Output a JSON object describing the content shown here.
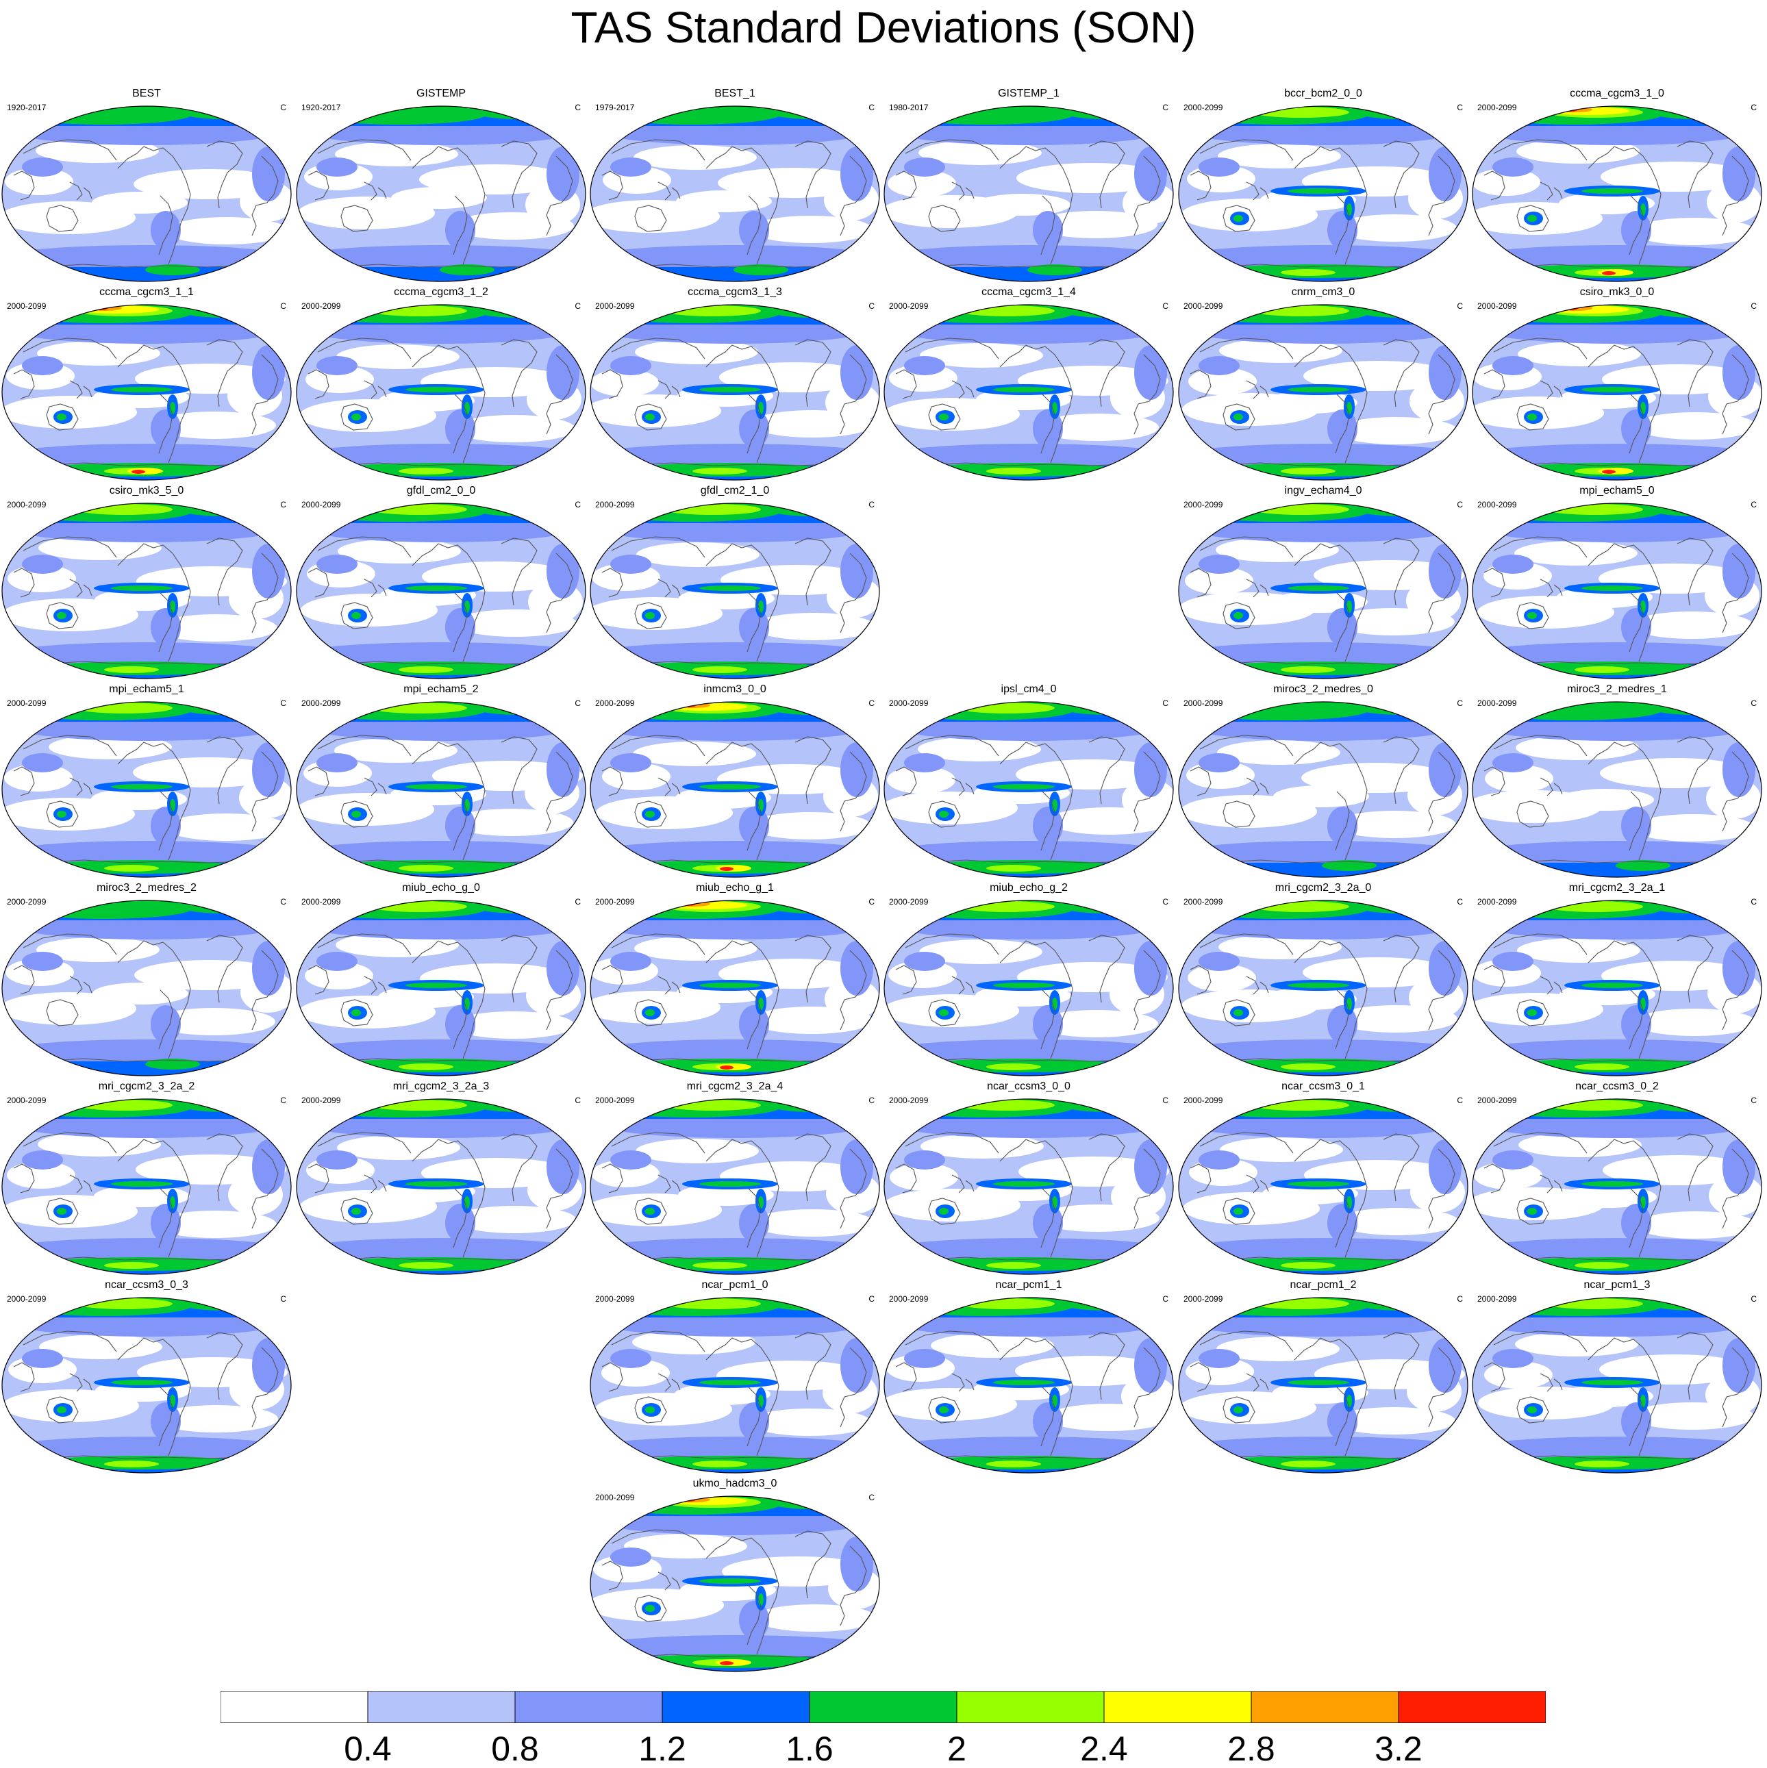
{
  "title": "TAS Standard Deviations (SON)",
  "units": "C",
  "panels": [
    {
      "name": "BEST",
      "period": "1920-2017",
      "row": 0,
      "col": 0,
      "style": "obs"
    },
    {
      "name": "GISTEMP",
      "period": "1920-2017",
      "row": 0,
      "col": 1,
      "style": "obs"
    },
    {
      "name": "BEST_1",
      "period": "1979-2017",
      "row": 0,
      "col": 2,
      "style": "obs"
    },
    {
      "name": "GISTEMP_1",
      "period": "1980-2017",
      "row": 0,
      "col": 3,
      "style": "obs"
    },
    {
      "name": "bccr_bcm2_0_0",
      "period": "2000-2099",
      "row": 0,
      "col": 4,
      "style": "model"
    },
    {
      "name": "cccma_cgcm3_1_0",
      "period": "2000-2099",
      "row": 0,
      "col": 5,
      "style": "hot"
    },
    {
      "name": "cccma_cgcm3_1_1",
      "period": "2000-2099",
      "row": 1,
      "col": 0,
      "style": "hot"
    },
    {
      "name": "cccma_cgcm3_1_2",
      "period": "2000-2099",
      "row": 1,
      "col": 1,
      "style": "model"
    },
    {
      "name": "cccma_cgcm3_1_3",
      "period": "2000-2099",
      "row": 1,
      "col": 2,
      "style": "model"
    },
    {
      "name": "cccma_cgcm3_1_4",
      "period": "2000-2099",
      "row": 1,
      "col": 3,
      "style": "model"
    },
    {
      "name": "cnrm_cm3_0",
      "period": "2000-2099",
      "row": 1,
      "col": 4,
      "style": "model"
    },
    {
      "name": "csiro_mk3_0_0",
      "period": "2000-2099",
      "row": 1,
      "col": 5,
      "style": "hot"
    },
    {
      "name": "csiro_mk3_5_0",
      "period": "2000-2099",
      "row": 2,
      "col": 0,
      "style": "model"
    },
    {
      "name": "gfdl_cm2_0_0",
      "period": "2000-2099",
      "row": 2,
      "col": 1,
      "style": "model"
    },
    {
      "name": "gfdl_cm2_1_0",
      "period": "2000-2099",
      "row": 2,
      "col": 2,
      "style": "model"
    },
    {
      "name": "ingv_echam4_0",
      "period": "2000-2099",
      "row": 2,
      "col": 4,
      "style": "model"
    },
    {
      "name": "mpi_echam5_0",
      "period": "2000-2099",
      "row": 2,
      "col": 5,
      "style": "model"
    },
    {
      "name": "mpi_echam5_1",
      "period": "2000-2099",
      "row": 3,
      "col": 0,
      "style": "model"
    },
    {
      "name": "mpi_echam5_2",
      "period": "2000-2099",
      "row": 3,
      "col": 1,
      "style": "model"
    },
    {
      "name": "inmcm3_0_0",
      "period": "2000-2099",
      "row": 3,
      "col": 2,
      "style": "hot"
    },
    {
      "name": "ipsl_cm4_0",
      "period": "2000-2099",
      "row": 3,
      "col": 3,
      "style": "model"
    },
    {
      "name": "miroc3_2_medres_0",
      "period": "2000-2099",
      "row": 3,
      "col": 4,
      "style": "obs"
    },
    {
      "name": "miroc3_2_medres_1",
      "period": "2000-2099",
      "row": 3,
      "col": 5,
      "style": "obs"
    },
    {
      "name": "miroc3_2_medres_2",
      "period": "2000-2099",
      "row": 4,
      "col": 0,
      "style": "obs"
    },
    {
      "name": "miub_echo_g_0",
      "period": "2000-2099",
      "row": 4,
      "col": 1,
      "style": "model"
    },
    {
      "name": "miub_echo_g_1",
      "period": "2000-2099",
      "row": 4,
      "col": 2,
      "style": "hot"
    },
    {
      "name": "miub_echo_g_2",
      "period": "2000-2099",
      "row": 4,
      "col": 3,
      "style": "model"
    },
    {
      "name": "mri_cgcm2_3_2a_0",
      "period": "2000-2099",
      "row": 4,
      "col": 4,
      "style": "model"
    },
    {
      "name": "mri_cgcm2_3_2a_1",
      "period": "2000-2099",
      "row": 4,
      "col": 5,
      "style": "model"
    },
    {
      "name": "mri_cgcm2_3_2a_2",
      "period": "2000-2099",
      "row": 5,
      "col": 0,
      "style": "model"
    },
    {
      "name": "mri_cgcm2_3_2a_3",
      "period": "2000-2099",
      "row": 5,
      "col": 1,
      "style": "model"
    },
    {
      "name": "mri_cgcm2_3_2a_4",
      "period": "2000-2099",
      "row": 5,
      "col": 2,
      "style": "model"
    },
    {
      "name": "ncar_ccsm3_0_0",
      "period": "2000-2099",
      "row": 5,
      "col": 3,
      "style": "model"
    },
    {
      "name": "ncar_ccsm3_0_1",
      "period": "2000-2099",
      "row": 5,
      "col": 4,
      "style": "model"
    },
    {
      "name": "ncar_ccsm3_0_2",
      "period": "2000-2099",
      "row": 5,
      "col": 5,
      "style": "model"
    },
    {
      "name": "ncar_ccsm3_0_3",
      "period": "2000-2099",
      "row": 6,
      "col": 0,
      "style": "model"
    },
    {
      "name": "ncar_pcm1_0",
      "period": "2000-2099",
      "row": 6,
      "col": 2,
      "style": "model"
    },
    {
      "name": "ncar_pcm1_1",
      "period": "2000-2099",
      "row": 6,
      "col": 3,
      "style": "model"
    },
    {
      "name": "ncar_pcm1_2",
      "period": "2000-2099",
      "row": 6,
      "col": 4,
      "style": "model"
    },
    {
      "name": "ncar_pcm1_3",
      "period": "2000-2099",
      "row": 6,
      "col": 5,
      "style": "model"
    },
    {
      "name": "ukmo_hadcm3_0",
      "period": "2000-2099",
      "row": 7,
      "col": 2,
      "style": "hot"
    }
  ],
  "colorbar": {
    "colors": [
      "#ffffff",
      "#b4c3fa",
      "#8296fa",
      "#0064ff",
      "#00c832",
      "#96ff00",
      "#ffff00",
      "#ffa000",
      "#ff1e00"
    ],
    "labels": [
      "0.4",
      "0.8",
      "1.2",
      "1.6",
      "2",
      "2.4",
      "2.8",
      "3.2"
    ]
  }
}
